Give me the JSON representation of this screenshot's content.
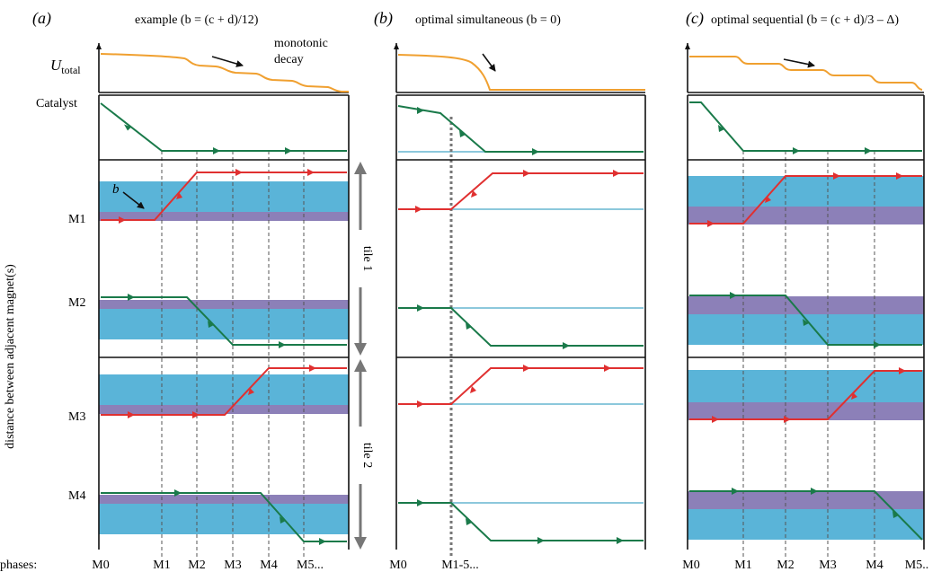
{
  "panel_titles": {
    "a_label": "(a)",
    "a_title": "example (b = (c + d)/12)",
    "b_label": "(b)",
    "b_title": "optimal simultaneous (b = 0)",
    "c_label": "(c)",
    "c_title": "optimal sequential (b = (c + d)/3 – Δ)"
  },
  "energy": {
    "u_label": "U",
    "u_sub": "total",
    "annotation_line1": "monotonic",
    "annotation_line2": "decay"
  },
  "rows": {
    "catalyst": "Catalyst",
    "m1": "M1",
    "m2": "M2",
    "m3": "M3",
    "m4": "M4"
  },
  "b_marker": "b",
  "y_axis_label": "distance between adjacent magnet(s)",
  "tiles": {
    "tile1": "tile 1",
    "tile2": "tile 2"
  },
  "phases": {
    "label": "phases:",
    "a": [
      "M0",
      "M1",
      "M2",
      "M3",
      "M4",
      "M5..."
    ],
    "b": [
      "M0",
      "M1-5..."
    ],
    "c": [
      "M0",
      "M1",
      "M2",
      "M3",
      "M4",
      "M5.."
    ]
  },
  "colors": {
    "energy_curve": "#f0a030",
    "red_magnet": "#e03030",
    "green_magnet": "#1a7a4a",
    "blue_band": "#5ab4d8",
    "purple_band": "#8c80b8",
    "light_blue_line": "#8cc8dc"
  }
}
